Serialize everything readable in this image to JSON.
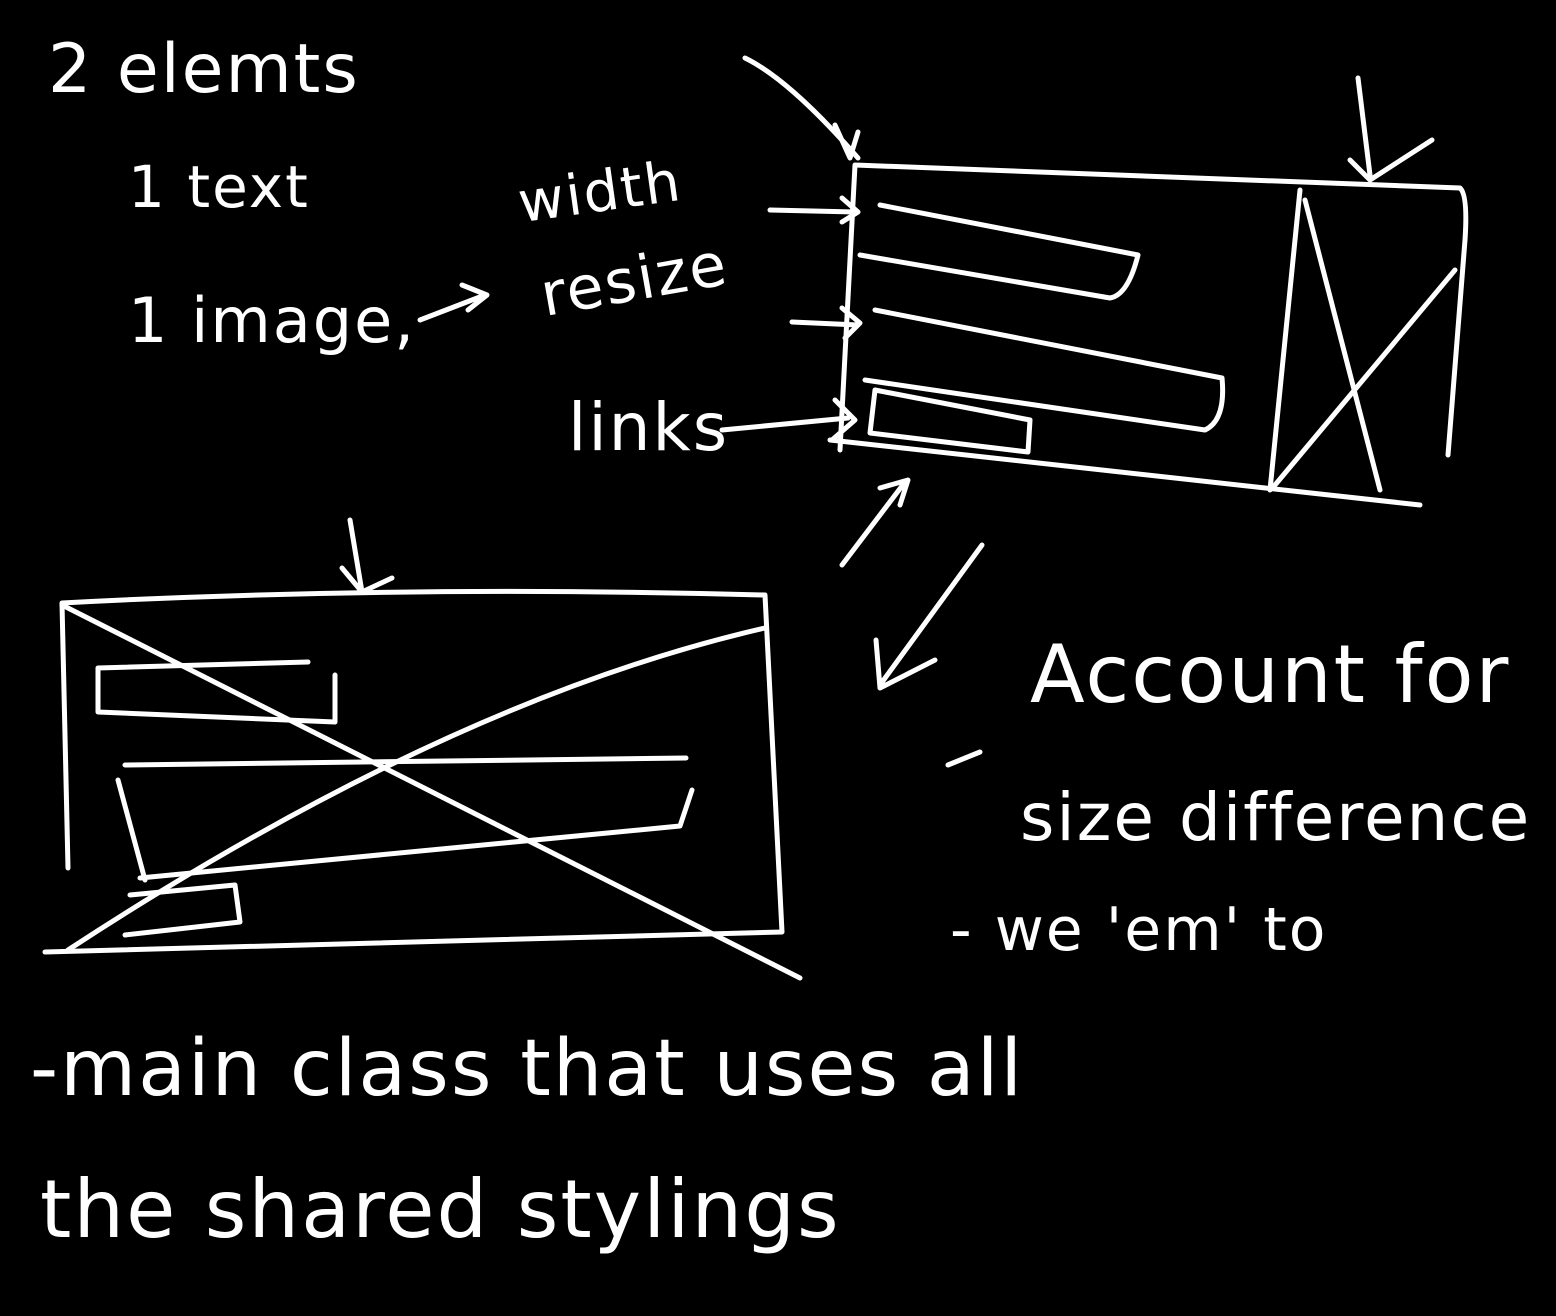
{
  "colors": {
    "background": "#000000",
    "ink": "#ffffff"
  },
  "notes": {
    "elements_heading": "2 elemts",
    "text_item": "1 text",
    "image_item": "1 image,",
    "width_label": "width",
    "resize_label": "resize",
    "links_label": "links",
    "account_line": "Account for",
    "difference_line": "size difference",
    "we_em_line": "- we 'em' to",
    "main_class_line": "-main class that uses all",
    "shared_stylings_line": "the shared stylings"
  }
}
